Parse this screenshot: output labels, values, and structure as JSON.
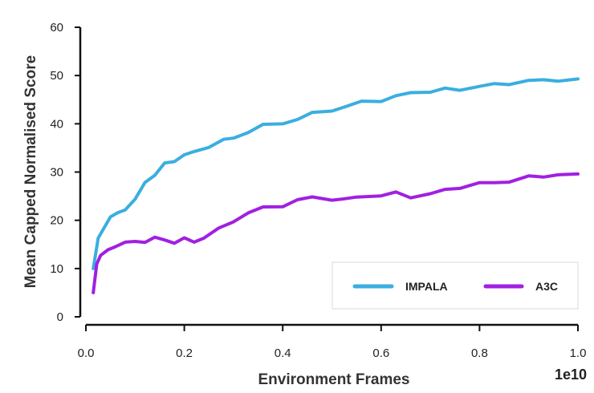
{
  "chart_data": {
    "type": "line",
    "title": "",
    "xlabel": "Environment Frames",
    "ylabel": "Mean Capped Normalised Score",
    "x_multiplier_label": "1e10",
    "xlim": [
      0.0,
      1.0
    ],
    "ylim": [
      0,
      60
    ],
    "x_ticks": [
      0.0,
      0.2,
      0.4,
      0.6,
      0.8,
      1.0
    ],
    "x_tick_labels": [
      "0.0",
      "0.2",
      "0.4",
      "0.6",
      "0.8",
      "1.0"
    ],
    "y_ticks": [
      0,
      10,
      20,
      30,
      40,
      50,
      60
    ],
    "y_tick_labels": [
      "0",
      "10",
      "20",
      "30",
      "40",
      "50",
      "60"
    ],
    "grid": false,
    "legend_position": "bottom-right",
    "series": [
      {
        "name": "IMPALA",
        "color": "#3aaee0",
        "x": [
          0.015,
          0.025,
          0.035,
          0.05,
          0.065,
          0.08,
          0.1,
          0.12,
          0.14,
          0.16,
          0.18,
          0.2,
          0.22,
          0.25,
          0.28,
          0.3,
          0.33,
          0.36,
          0.4,
          0.43,
          0.46,
          0.5,
          0.53,
          0.56,
          0.6,
          0.63,
          0.66,
          0.7,
          0.73,
          0.76,
          0.8,
          0.83,
          0.86,
          0.9,
          0.93,
          0.96,
          1.0
        ],
        "values": [
          10,
          16,
          18.5,
          20.5,
          21.5,
          22.5,
          24,
          28,
          29.5,
          31.5,
          32.5,
          33.5,
          34,
          35.5,
          36.5,
          37,
          38.5,
          39.5,
          40.2,
          41,
          42,
          43,
          43.5,
          44.5,
          45,
          45.5,
          46.5,
          46.8,
          47,
          47.2,
          47.8,
          48,
          48.5,
          48.8,
          49,
          49.2,
          49.3
        ]
      },
      {
        "name": "A3C",
        "color": "#a020e0",
        "x": [
          0.015,
          0.022,
          0.03,
          0.045,
          0.06,
          0.08,
          0.1,
          0.12,
          0.14,
          0.16,
          0.18,
          0.2,
          0.22,
          0.24,
          0.27,
          0.3,
          0.33,
          0.36,
          0.4,
          0.43,
          0.46,
          0.5,
          0.52,
          0.55,
          0.6,
          0.63,
          0.66,
          0.7,
          0.73,
          0.76,
          0.8,
          0.83,
          0.86,
          0.9,
          0.93,
          0.96,
          1.0
        ],
        "values": [
          5,
          11,
          13,
          13.5,
          14.8,
          15.5,
          15.3,
          15.8,
          16.3,
          15.8,
          15.6,
          16,
          15.6,
          16.5,
          18,
          20,
          21.5,
          22.5,
          23.2,
          24,
          24.8,
          24.5,
          24,
          25,
          25.2,
          25.5,
          25,
          25.4,
          26.2,
          27,
          27.5,
          27.8,
          28.2,
          28.8,
          29.2,
          29.5,
          29.6
        ]
      }
    ]
  }
}
